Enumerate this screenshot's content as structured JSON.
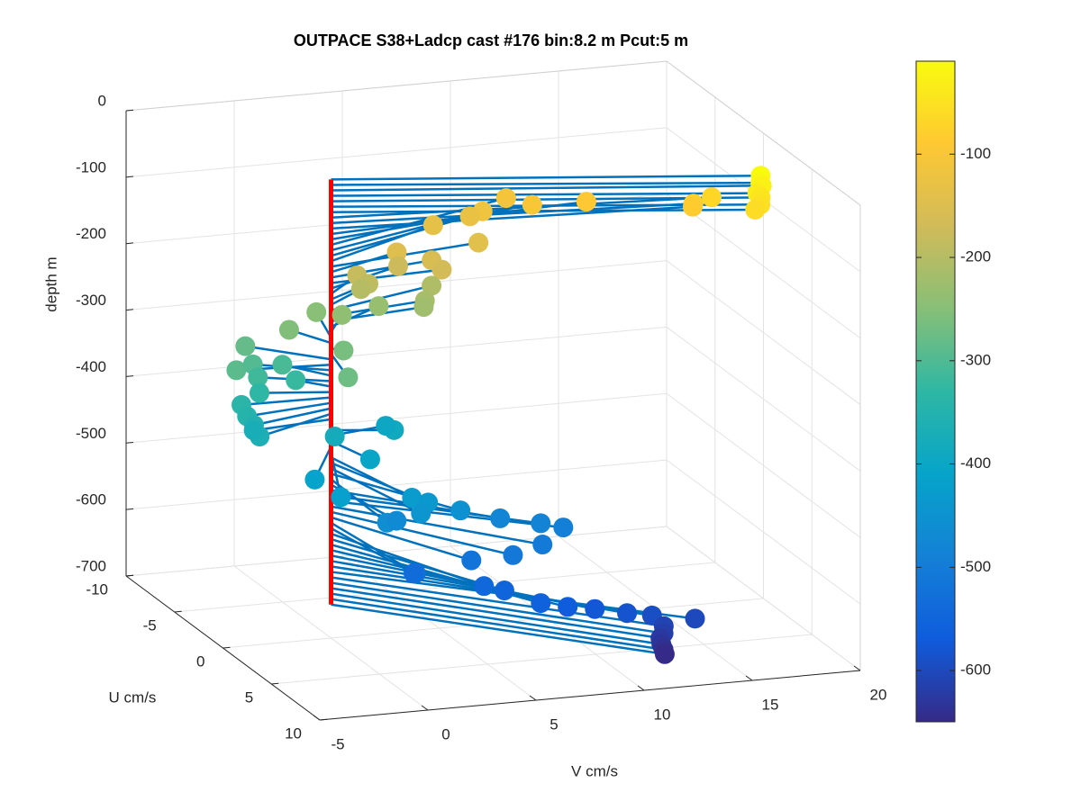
{
  "chart_data": {
    "type": "scatter3",
    "title": "OUTPACE S38+Ladcp cast #176 bin:8.2 m  Pcut:5 m",
    "xlabel": "V cm/s",
    "ylabel": "U cm/s",
    "zlabel": "depth m",
    "vlim": [
      -5,
      20
    ],
    "vticks": [
      -5,
      0,
      5,
      10,
      15,
      20
    ],
    "ulim": [
      -10,
      10
    ],
    "uticks": [
      -10,
      -5,
      0,
      5,
      10
    ],
    "zlim": [
      -700,
      0
    ],
    "zticks": [
      0,
      -100,
      -200,
      -300,
      -400,
      -500,
      -600,
      -700
    ],
    "clim": [
      -649.6,
      -10
    ],
    "cticks": [
      -100,
      -200,
      -300,
      -400,
      -500,
      -600
    ],
    "colormap": [
      "#352a87",
      "#0f5cdd",
      "#1481d6",
      "#06a4ca",
      "#2eb7a4",
      "#87bf77",
      "#d1bb59",
      "#fec832",
      "#f9fb0e"
    ],
    "stick_color": "#0072bd",
    "profile_color": "#ff0000",
    "grid": true,
    "depth": [
      -10,
      -18.2,
      -26.4,
      -34.6,
      -42.8,
      -51,
      -59.2,
      -67.4,
      -75.6,
      -83.8,
      -92,
      -100.2,
      -108.4,
      -116.6,
      -124.8,
      -133,
      -141.2,
      -149.4,
      -157.6,
      -165.8,
      -174,
      -182.2,
      -190.4,
      -198.6,
      -206.8,
      -215,
      -223.2,
      -231.4,
      -239.6,
      -247.8,
      -256,
      -264.2,
      -272.4,
      -280.6,
      -288.8,
      -297,
      -305.2,
      -313.4,
      -321.6,
      -329.8,
      -338,
      -346.2,
      -354.4,
      -362.6,
      -370.8,
      -379,
      -387.2,
      -395.4,
      -403.6,
      -411.8,
      -420,
      -428.2,
      -436.4,
      -444.6,
      -452.8,
      -461,
      -469.2,
      -477.4,
      -485.6,
      -493.8,
      -502,
      -510.2,
      -518.4,
      -526.6,
      -534.8,
      -543,
      -551.2,
      -559.4,
      -567.6,
      -575.8,
      -584,
      -592.2,
      -600.4,
      -608.6,
      -616.8,
      -625,
      -633.2,
      -641.4,
      -649.6
    ],
    "u": [
      4.4,
      4.6,
      4.3,
      4.5,
      4.4,
      4.6,
      4.5,
      1.8,
      1.7,
      1.4,
      -1.1,
      -2.0,
      -3.8,
      -3.1,
      -3.3,
      -3.3,
      -1.3,
      -1.7,
      -1.0,
      -0.4,
      -2.0,
      -2.0,
      -1.5,
      -1.6,
      -1.9,
      -0.8,
      -0.7,
      -2.0,
      -2.0,
      -3.3,
      -2.1,
      0.4,
      3.1,
      -2.6,
      -0.4,
      -1.6,
      -1.9,
      -1.3,
      -1.2,
      -0.7,
      -0.1,
      0.7,
      1.2,
      2.0,
      0.5,
      1.5,
      0.7,
      -0.6,
      2.7,
      3.9,
      5.7,
      5.9,
      6.0,
      6.6,
      6.0,
      6.0,
      5.2,
      5.4,
      5.8,
      5.9,
      7.1,
      7.4,
      6.9,
      7.2,
      6.5,
      8.2,
      8.3,
      9.6,
      9.7,
      9.6,
      9.8,
      9.7,
      9.9,
      9.8,
      10.0,
      9.9,
      10.0,
      10.0,
      9.9
    ],
    "v": [
      17.9,
      17.8,
      18.0,
      17.7,
      17.9,
      17.8,
      17.6,
      16.8,
      16.0,
      16.1,
      12.3,
      10.2,
      9.8,
      8.4,
      7.9,
      6.2,
      7.4,
      3.8,
      5.1,
      5.3,
      4.0,
      2.1,
      2.4,
      2.1,
      5.5,
      4.7,
      4.6,
      3.1,
      1.4,
      0.8,
      -1.0,
      0.4,
      -0.6,
      -2.8,
      -4.2,
      -2.9,
      -1.4,
      -2.8,
      -1.1,
      -3.0,
      -4.1,
      -4.2,
      -4.1,
      -4.2,
      -3.8,
      -0.5,
      2.6,
      2.8,
      0.6,
      -2.5,
      -2.1,
      1.1,
      1.8,
      1.2,
      3.3,
      -0.1,
      0.7,
      5.4,
      7.1,
      8.1,
      6.6,
      5.1,
      3.4,
      0.7,
      0.9,
      3.4,
      4.3,
      5.4,
      6.6,
      7.9,
      9.3,
      10.5,
      12.4,
      11.0,
      10.9,
      10.8,
      10.8,
      10.9,
      11.0
    ]
  }
}
